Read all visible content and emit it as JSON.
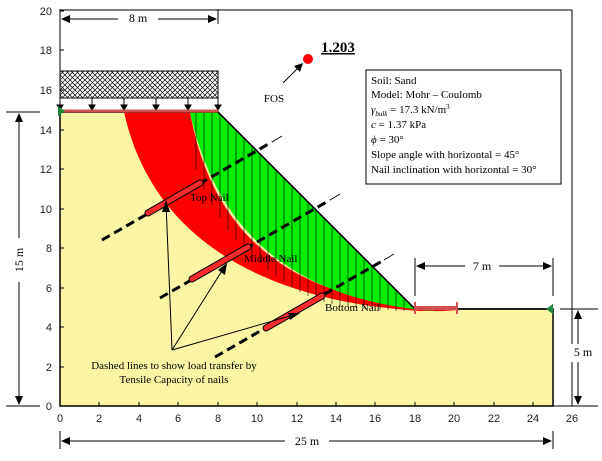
{
  "axes": {
    "x_ticks": [
      "0",
      "2",
      "4",
      "6",
      "8",
      "10",
      "12",
      "14",
      "16",
      "18",
      "20",
      "22",
      "24",
      "26"
    ],
    "y_ticks": [
      "0",
      "2",
      "4",
      "6",
      "8",
      "10",
      "12",
      "14",
      "16",
      "18",
      "20"
    ]
  },
  "dimensions": {
    "top_width": "8 m",
    "bottom_width": "25 m",
    "left_height": "15 m",
    "toe_width": "7 m",
    "right_height": "5 m"
  },
  "fos": {
    "label": "FOS",
    "value": "1.203"
  },
  "nails": {
    "top": "Top Nail",
    "middle": "Middle Nail",
    "bottom": "Bottom Nail"
  },
  "annotation": {
    "line1": "Dashed lines to show load transfer by",
    "line2": "Tensile Capacity of nails"
  },
  "info_box": {
    "soil": "Soil: Sand",
    "model": "Model: Mohr – Coulomb",
    "gamma_symbol": "γ",
    "gamma_sub": "bulk",
    "gamma_value": " = 17.3 kN/m",
    "gamma_sup": "3",
    "c_symbol": "c",
    "c_value": " = 1.37 kPa",
    "phi_symbol": "ϕ",
    "phi_value": " = 30°",
    "slope_angle": "Slope angle with horizontal = 45°",
    "nail_inclination": "Nail inclination with horizontal = 30°"
  },
  "colors": {
    "soil": "#fbf5a4",
    "slip_zone": "#ff0000",
    "failure_wedge": "#00ee00",
    "nail_segment": "#ff2a2a",
    "fos_dot": "#ff0000",
    "load_marker": "#d05050",
    "support": "#1a8a3a"
  }
}
